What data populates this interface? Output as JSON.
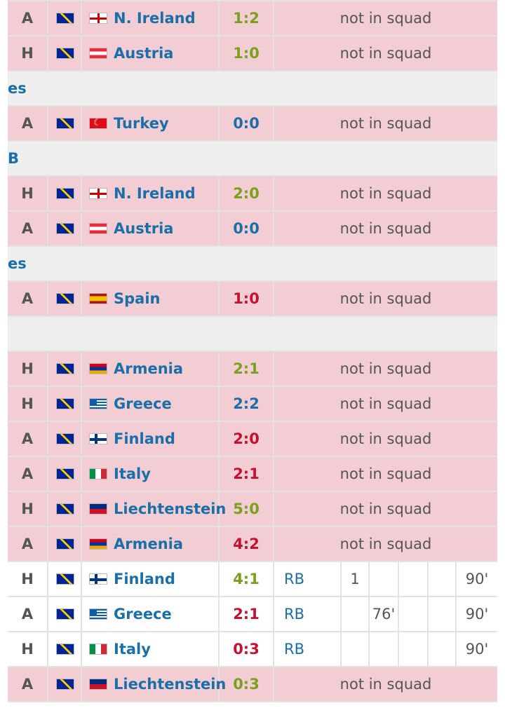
{
  "matches_top": [
    {
      "venue": "A",
      "team_flag": "bih-flag",
      "opp_flag": "nir-flag",
      "opponent": "N. Ireland",
      "result": "1:2",
      "result_type": "win",
      "status": "not in squad"
    },
    {
      "venue": "H",
      "team_flag": "bih-flag",
      "opp_flag": "aut-flag",
      "opponent": "Austria",
      "result": "1:0",
      "result_type": "win",
      "status": "not in squad"
    }
  ],
  "sections": [
    {
      "label": "es"
    },
    {
      "label": "B"
    },
    {
      "label": "es"
    },
    {
      "label": ""
    }
  ],
  "group_turkey": [
    {
      "venue": "A",
      "team_flag": "bih-flag",
      "opp_flag": "tur-flag",
      "opponent": "Turkey",
      "result": "0:0",
      "result_type": "draw",
      "status": "not in squad"
    }
  ],
  "group_b": [
    {
      "venue": "H",
      "team_flag": "bih-flag",
      "opp_flag": "nir-flag",
      "opponent": "N. Ireland",
      "result": "2:0",
      "result_type": "win",
      "status": "not in squad"
    },
    {
      "venue": "A",
      "team_flag": "bih-flag",
      "opp_flag": "aut-flag",
      "opponent": "Austria",
      "result": "0:0",
      "result_type": "draw",
      "status": "not in squad"
    }
  ],
  "group_spain": [
    {
      "venue": "A",
      "team_flag": "bih-flag",
      "opp_flag": "esp-flag",
      "opponent": "Spain",
      "result": "1:0",
      "result_type": "loss",
      "status": "not in squad"
    }
  ],
  "qualifiers": [
    {
      "venue": "H",
      "opp_flag": "arm-flag",
      "opponent": "Armenia",
      "result": "2:1",
      "result_type": "win",
      "status": "not in squad"
    },
    {
      "venue": "H",
      "opp_flag": "gre-flag",
      "opponent": "Greece",
      "result": "2:2",
      "result_type": "draw",
      "status": "not in squad"
    },
    {
      "venue": "A",
      "opp_flag": "fin-flag",
      "opponent": "Finland",
      "result": "2:0",
      "result_type": "loss",
      "status": "not in squad"
    },
    {
      "venue": "A",
      "opp_flag": "ita-flag",
      "opponent": "Italy",
      "result": "2:1",
      "result_type": "loss",
      "status": "not in squad"
    },
    {
      "venue": "H",
      "opp_flag": "lie-flag",
      "opponent": "Liechtenstein",
      "result": "5:0",
      "result_type": "win",
      "status": "not in squad"
    },
    {
      "venue": "A",
      "opp_flag": "arm-flag",
      "opponent": "Armenia",
      "result": "4:2",
      "result_type": "loss",
      "status": "not in squad"
    },
    {
      "venue": "H",
      "opp_flag": "fin-flag",
      "opponent": "Finland",
      "result": "4:1",
      "result_type": "win",
      "position": "RB",
      "goals": "1",
      "assists": "",
      "yellow": "",
      "red": "",
      "minutes": "90'"
    },
    {
      "venue": "A",
      "opp_flag": "gre-flag",
      "opponent": "Greece",
      "result": "2:1",
      "result_type": "loss",
      "position": "RB",
      "goals": "",
      "assists": "76'",
      "yellow": "",
      "red": "",
      "minutes": "90'"
    },
    {
      "venue": "H",
      "opp_flag": "ita-flag",
      "opponent": "Italy",
      "result": "0:3",
      "result_type": "loss",
      "position": "RB",
      "goals": "",
      "assists": "",
      "yellow": "",
      "red": "",
      "minutes": "90'"
    },
    {
      "venue": "A",
      "opp_flag": "lie-flag",
      "opponent": "Liechtenstein",
      "result": "0:3",
      "result_type": "win",
      "status": "not in squad"
    }
  ],
  "colors": {
    "win": "#7aa01c",
    "draw": "#1a6fa8",
    "loss": "#c8102e",
    "not_in_squad_bg": "#f2cdd4",
    "link": "#1a6fa8"
  }
}
